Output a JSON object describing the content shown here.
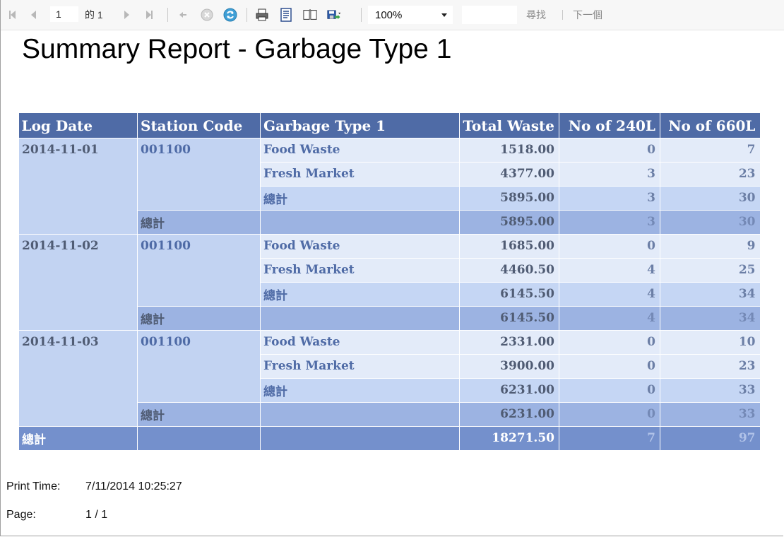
{
  "toolbar": {
    "current_page": "1",
    "of_label": "的",
    "total_pages": "1",
    "zoom": "100%",
    "find_label": "尋找",
    "next_label": "下一個"
  },
  "report": {
    "title": "Summary Report - Garbage Type 1",
    "headers": [
      "Log Date",
      "Station Code",
      "Garbage Type 1",
      "Total Waste",
      "No of 240L",
      "No of 660L"
    ],
    "groups": [
      {
        "date": "2014-11-01",
        "station": "001100",
        "rows": [
          {
            "type": "Food Waste",
            "total": "1518.00",
            "n240": "0",
            "n660": "7"
          },
          {
            "type": "Fresh Market",
            "total": "4377.00",
            "n240": "3",
            "n660": "23"
          }
        ],
        "type_subtotal": {
          "label": "總計",
          "total": "5895.00",
          "n240": "3",
          "n660": "30"
        },
        "station_subtotal": {
          "label": "總計",
          "total": "5895.00",
          "n240": "3",
          "n660": "30"
        }
      },
      {
        "date": "2014-11-02",
        "station": "001100",
        "rows": [
          {
            "type": "Food Waste",
            "total": "1685.00",
            "n240": "0",
            "n660": "9"
          },
          {
            "type": "Fresh Market",
            "total": "4460.50",
            "n240": "4",
            "n660": "25"
          }
        ],
        "type_subtotal": {
          "label": "總計",
          "total": "6145.50",
          "n240": "4",
          "n660": "34"
        },
        "station_subtotal": {
          "label": "總計",
          "total": "6145.50",
          "n240": "4",
          "n660": "34"
        }
      },
      {
        "date": "2014-11-03",
        "station": "001100",
        "rows": [
          {
            "type": "Food Waste",
            "total": "2331.00",
            "n240": "0",
            "n660": "10"
          },
          {
            "type": "Fresh Market",
            "total": "3900.00",
            "n240": "0",
            "n660": "23"
          }
        ],
        "type_subtotal": {
          "label": "總計",
          "total": "6231.00",
          "n240": "0",
          "n660": "33"
        },
        "station_subtotal": {
          "label": "總計",
          "total": "6231.00",
          "n240": "0",
          "n660": "33"
        }
      }
    ],
    "grand_total": {
      "label": "總計",
      "total": "18271.50",
      "n240": "7",
      "n660": "97"
    }
  },
  "footer": {
    "print_time_label": "Print Time:",
    "print_time_value": "7/11/2014 10:25:27",
    "page_label": "Page:",
    "page_value": "1 / 1"
  },
  "colors": {
    "header": "#4f6ba6",
    "group_cell": "#c2d3f2",
    "row_light": "#e3ebf9",
    "row_mid": "#c5d6f4",
    "row_dark": "#9cb3e2",
    "grand_total": "#7490cc"
  },
  "icons": [
    "first-page-icon",
    "prev-page-icon",
    "next-page-icon",
    "last-page-icon",
    "back-icon",
    "stop-icon",
    "refresh-icon",
    "print-icon",
    "print-layout-icon",
    "page-setup-icon",
    "export-icon"
  ]
}
